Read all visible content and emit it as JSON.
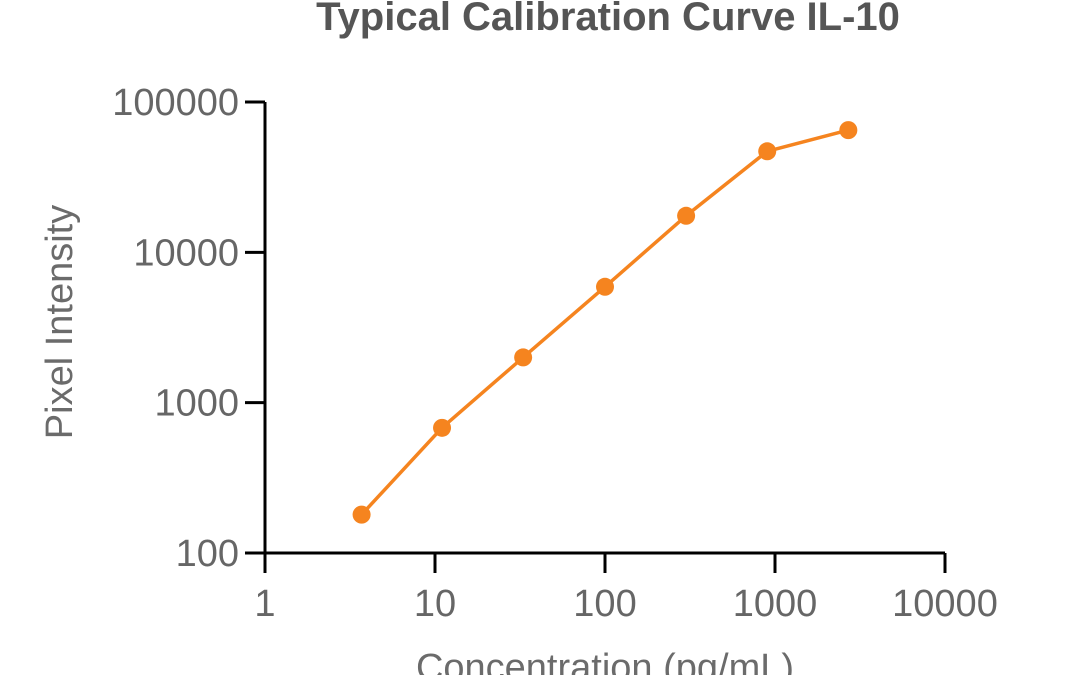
{
  "chart_data": {
    "type": "line",
    "title": "Typical Calibration Curve IL-10",
    "xlabel": "Concentration (pg/mL)",
    "ylabel": "Pixel Intensity",
    "xscale": "log",
    "yscale": "log",
    "xlim": [
      1,
      10000
    ],
    "ylim": [
      100,
      100000
    ],
    "x_ticks": [
      "1",
      "10",
      "100",
      "1000",
      "10000"
    ],
    "y_ticks": [
      "100",
      "1000",
      "10000",
      "100000"
    ],
    "grid": false,
    "legend": "none",
    "series": [
      {
        "color": "#f5841f",
        "points": [
          {
            "x": 3.7,
            "y": 180
          },
          {
            "x": 11,
            "y": 680
          },
          {
            "x": 33,
            "y": 2000
          },
          {
            "x": 100,
            "y": 5900
          },
          {
            "x": 300,
            "y": 17500
          },
          {
            "x": 900,
            "y": 47000
          },
          {
            "x": 2700,
            "y": 65000
          }
        ]
      }
    ]
  }
}
